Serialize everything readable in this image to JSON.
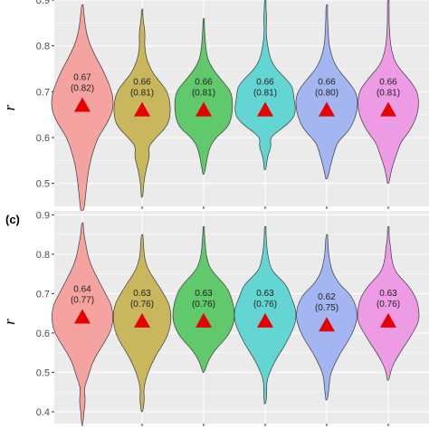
{
  "colors": {
    "panel_bg": "#ebebeb",
    "grid": "#ffffff",
    "marker": "#e60000",
    "violins": [
      "#f4a3a0",
      "#c9b75e",
      "#5fc96b",
      "#63d6d3",
      "#a4b6f2",
      "#ee9be6"
    ]
  },
  "chart_data": [
    {
      "type": "violin",
      "panel_label": "",
      "ylabel": "r",
      "ylim": [
        0.45,
        0.9
      ],
      "yticks": [
        0.5,
        0.6,
        0.7,
        0.8,
        0.9
      ],
      "ytick_labels": [
        "0.5",
        "0.6",
        "0.7",
        "0.8",
        "0.9"
      ],
      "grid": true,
      "marker": "triangle (mean)",
      "groups": [
        {
          "mean": 0.67,
          "label_value": "0.67",
          "label_sub": "(0.82)",
          "min": 0.44,
          "max": 0.89,
          "profile": [
            [
              0.44,
              0.002
            ],
            [
              0.47,
              0.004
            ],
            [
              0.52,
              0.007
            ],
            [
              0.56,
              0.012
            ],
            [
              0.6,
              0.02
            ],
            [
              0.63,
              0.032
            ],
            [
              0.66,
              0.04
            ],
            [
              0.69,
              0.04
            ],
            [
              0.72,
              0.034
            ],
            [
              0.75,
              0.026
            ],
            [
              0.78,
              0.016
            ],
            [
              0.81,
              0.008
            ],
            [
              0.84,
              0.004
            ],
            [
              0.87,
              0.002
            ],
            [
              0.89,
              0.001
            ]
          ]
        },
        {
          "mean": 0.66,
          "label_value": "0.66",
          "label_sub": "(0.81)",
          "min": 0.47,
          "max": 0.88,
          "profile": [
            [
              0.47,
              0.001
            ],
            [
              0.5,
              0.002
            ],
            [
              0.53,
              0.005
            ],
            [
              0.56,
              0.01
            ],
            [
              0.58,
              0.008
            ],
            [
              0.6,
              0.018
            ],
            [
              0.62,
              0.03
            ],
            [
              0.64,
              0.036
            ],
            [
              0.67,
              0.037
            ],
            [
              0.7,
              0.033
            ],
            [
              0.72,
              0.024
            ],
            [
              0.74,
              0.014
            ],
            [
              0.77,
              0.006
            ],
            [
              0.8,
              0.003
            ],
            [
              0.83,
              0.004
            ],
            [
              0.86,
              0.001
            ],
            [
              0.88,
              0.001
            ]
          ]
        },
        {
          "mean": 0.66,
          "label_value": "0.66",
          "label_sub": "(0.81)",
          "min": 0.52,
          "max": 0.86,
          "profile": [
            [
              0.52,
              0.001
            ],
            [
              0.55,
              0.004
            ],
            [
              0.58,
              0.008
            ],
            [
              0.6,
              0.016
            ],
            [
              0.62,
              0.03
            ],
            [
              0.64,
              0.036
            ],
            [
              0.67,
              0.038
            ],
            [
              0.7,
              0.036
            ],
            [
              0.72,
              0.026
            ],
            [
              0.74,
              0.016
            ],
            [
              0.76,
              0.008
            ],
            [
              0.78,
              0.004
            ],
            [
              0.81,
              0.002
            ],
            [
              0.84,
              0.001
            ],
            [
              0.86,
              0.001
            ]
          ]
        },
        {
          "mean": 0.66,
          "label_value": "0.66",
          "label_sub": "(0.81)",
          "min": 0.53,
          "max": 0.9,
          "profile": [
            [
              0.53,
              0.001
            ],
            [
              0.56,
              0.003
            ],
            [
              0.58,
              0.008
            ],
            [
              0.6,
              0.006
            ],
            [
              0.62,
              0.022
            ],
            [
              0.64,
              0.036
            ],
            [
              0.66,
              0.04
            ],
            [
              0.69,
              0.037
            ],
            [
              0.71,
              0.036
            ],
            [
              0.73,
              0.026
            ],
            [
              0.75,
              0.014
            ],
            [
              0.77,
              0.007
            ],
            [
              0.8,
              0.003
            ],
            [
              0.83,
              0.001
            ],
            [
              0.86,
              0.002
            ],
            [
              0.88,
              0.001
            ],
            [
              0.9,
              0.001
            ]
          ]
        },
        {
          "mean": 0.66,
          "label_value": "0.66",
          "label_sub": "(0.80)",
          "min": 0.51,
          "max": 0.89,
          "profile": [
            [
              0.51,
              0.001
            ],
            [
              0.54,
              0.005
            ],
            [
              0.57,
              0.01
            ],
            [
              0.59,
              0.014
            ],
            [
              0.61,
              0.026
            ],
            [
              0.63,
              0.034
            ],
            [
              0.66,
              0.04
            ],
            [
              0.69,
              0.04
            ],
            [
              0.71,
              0.034
            ],
            [
              0.73,
              0.024
            ],
            [
              0.75,
              0.014
            ],
            [
              0.77,
              0.008
            ],
            [
              0.8,
              0.003
            ],
            [
              0.83,
              0.002
            ],
            [
              0.86,
              0.001
            ],
            [
              0.89,
              0.001
            ]
          ]
        },
        {
          "mean": 0.66,
          "label_value": "0.66",
          "label_sub": "(0.81)",
          "min": 0.5,
          "max": 0.9,
          "profile": [
            [
              0.5,
              0.001
            ],
            [
              0.53,
              0.004
            ],
            [
              0.56,
              0.01
            ],
            [
              0.59,
              0.016
            ],
            [
              0.61,
              0.026
            ],
            [
              0.64,
              0.036
            ],
            [
              0.67,
              0.04
            ],
            [
              0.7,
              0.038
            ],
            [
              0.72,
              0.03
            ],
            [
              0.74,
              0.02
            ],
            [
              0.76,
              0.01
            ],
            [
              0.79,
              0.004
            ],
            [
              0.82,
              0.002
            ],
            [
              0.85,
              0.001
            ],
            [
              0.88,
              0.001
            ],
            [
              0.9,
              0.001
            ]
          ]
        }
      ]
    },
    {
      "type": "violin",
      "panel_label": "(c)",
      "ylabel": "r",
      "ylim": [
        0.37,
        0.91
      ],
      "yticks": [
        0.4,
        0.5,
        0.6,
        0.7,
        0.8,
        0.9
      ],
      "ytick_labels": [
        "0.4",
        "0.5",
        "0.6",
        "0.7",
        "0.8",
        "0.9"
      ],
      "grid": true,
      "marker": "triangle (mean)",
      "groups": [
        {
          "mean": 0.64,
          "label_value": "0.64",
          "label_sub": "(0.77)",
          "min": 0.37,
          "max": 0.88,
          "profile": [
            [
              0.37,
              0.001
            ],
            [
              0.4,
              0.002
            ],
            [
              0.43,
              0.004
            ],
            [
              0.46,
              0.002
            ],
            [
              0.49,
              0.008
            ],
            [
              0.52,
              0.012
            ],
            [
              0.55,
              0.02
            ],
            [
              0.58,
              0.03
            ],
            [
              0.61,
              0.038
            ],
            [
              0.64,
              0.04
            ],
            [
              0.67,
              0.038
            ],
            [
              0.7,
              0.03
            ],
            [
              0.73,
              0.022
            ],
            [
              0.76,
              0.014
            ],
            [
              0.79,
              0.008
            ],
            [
              0.82,
              0.005
            ],
            [
              0.85,
              0.002
            ],
            [
              0.88,
              0.001
            ]
          ]
        },
        {
          "mean": 0.63,
          "label_value": "0.63",
          "label_sub": "(0.76)",
          "min": 0.4,
          "max": 0.85,
          "profile": [
            [
              0.4,
              0.001
            ],
            [
              0.43,
              0.003
            ],
            [
              0.46,
              0.002
            ],
            [
              0.49,
              0.006
            ],
            [
              0.52,
              0.012
            ],
            [
              0.55,
              0.02
            ],
            [
              0.58,
              0.03
            ],
            [
              0.61,
              0.036
            ],
            [
              0.64,
              0.038
            ],
            [
              0.67,
              0.036
            ],
            [
              0.7,
              0.028
            ],
            [
              0.73,
              0.018
            ],
            [
              0.76,
              0.008
            ],
            [
              0.79,
              0.003
            ],
            [
              0.82,
              0.002
            ],
            [
              0.85,
              0.001
            ]
          ]
        },
        {
          "mean": 0.63,
          "label_value": "0.63",
          "label_sub": "(0.76)",
          "min": 0.5,
          "max": 0.87,
          "profile": [
            [
              0.5,
              0.001
            ],
            [
              0.53,
              0.006
            ],
            [
              0.56,
              0.016
            ],
            [
              0.58,
              0.026
            ],
            [
              0.6,
              0.034
            ],
            [
              0.63,
              0.04
            ],
            [
              0.66,
              0.04
            ],
            [
              0.69,
              0.036
            ],
            [
              0.71,
              0.032
            ],
            [
              0.73,
              0.024
            ],
            [
              0.75,
              0.014
            ],
            [
              0.77,
              0.007
            ],
            [
              0.8,
              0.003
            ],
            [
              0.83,
              0.002
            ],
            [
              0.85,
              0.001
            ],
            [
              0.87,
              0.001
            ]
          ]
        },
        {
          "mean": 0.63,
          "label_value": "0.63",
          "label_sub": "(0.76)",
          "min": 0.42,
          "max": 0.87,
          "profile": [
            [
              0.42,
              0.001
            ],
            [
              0.45,
              0.002
            ],
            [
              0.48,
              0.002
            ],
            [
              0.51,
              0.008
            ],
            [
              0.54,
              0.016
            ],
            [
              0.57,
              0.026
            ],
            [
              0.6,
              0.034
            ],
            [
              0.63,
              0.04
            ],
            [
              0.66,
              0.04
            ],
            [
              0.69,
              0.034
            ],
            [
              0.72,
              0.028
            ],
            [
              0.74,
              0.018
            ],
            [
              0.76,
              0.008
            ],
            [
              0.79,
              0.004
            ],
            [
              0.82,
              0.002
            ],
            [
              0.85,
              0.001
            ],
            [
              0.87,
              0.001
            ]
          ]
        },
        {
          "mean": 0.62,
          "label_value": "0.62",
          "label_sub": "(0.75)",
          "min": 0.43,
          "max": 0.85,
          "profile": [
            [
              0.43,
              0.001
            ],
            [
              0.46,
              0.003
            ],
            [
              0.49,
              0.004
            ],
            [
              0.52,
              0.01
            ],
            [
              0.55,
              0.018
            ],
            [
              0.58,
              0.028
            ],
            [
              0.61,
              0.036
            ],
            [
              0.64,
              0.04
            ],
            [
              0.67,
              0.038
            ],
            [
              0.7,
              0.03
            ],
            [
              0.72,
              0.018
            ],
            [
              0.75,
              0.008
            ],
            [
              0.78,
              0.004
            ],
            [
              0.81,
              0.002
            ],
            [
              0.85,
              0.001
            ]
          ]
        },
        {
          "mean": 0.63,
          "label_value": "0.63",
          "label_sub": "(0.76)",
          "min": 0.48,
          "max": 0.87,
          "profile": [
            [
              0.48,
              0.001
            ],
            [
              0.51,
              0.004
            ],
            [
              0.54,
              0.012
            ],
            [
              0.57,
              0.022
            ],
            [
              0.6,
              0.032
            ],
            [
              0.63,
              0.04
            ],
            [
              0.66,
              0.04
            ],
            [
              0.69,
              0.036
            ],
            [
              0.72,
              0.026
            ],
            [
              0.74,
              0.016
            ],
            [
              0.76,
              0.008
            ],
            [
              0.79,
              0.004
            ],
            [
              0.82,
              0.003
            ],
            [
              0.84,
              0.001
            ],
            [
              0.87,
              0.001
            ]
          ]
        }
      ]
    }
  ]
}
